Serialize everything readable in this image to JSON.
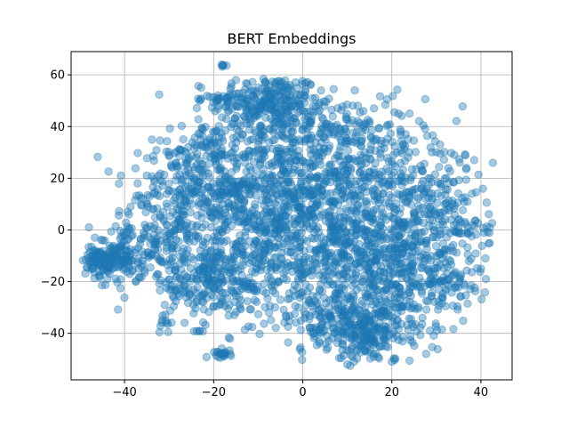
{
  "chart_data": {
    "type": "scatter",
    "title": "BERT Embeddings",
    "xlabel": "",
    "ylabel": "",
    "xlim": [
      -52,
      47
    ],
    "ylim": [
      -58,
      69
    ],
    "xticks": [
      -40,
      -20,
      0,
      20,
      40
    ],
    "yticks": [
      -40,
      -20,
      0,
      20,
      40,
      60
    ],
    "xtick_labels": [
      "−40",
      "−20",
      "0",
      "20",
      "40"
    ],
    "ytick_labels": [
      "−40",
      "−20",
      "0",
      "20",
      "40",
      "60"
    ],
    "grid": true,
    "marker_color": "#1f77b4",
    "marker_alpha": 0.4,
    "clusters": [
      {
        "cx": -8,
        "cy": 50,
        "sx": 6,
        "sy": 5,
        "n": 220
      },
      {
        "cx": -2,
        "cy": 40,
        "sx": 10,
        "sy": 6,
        "n": 180
      },
      {
        "cx": 10,
        "cy": 20,
        "sx": 12,
        "sy": 14,
        "n": 520
      },
      {
        "cx": -10,
        "cy": 15,
        "sx": 10,
        "sy": 12,
        "n": 360
      },
      {
        "cx": 0,
        "cy": -5,
        "sx": 14,
        "sy": 14,
        "n": 620
      },
      {
        "cx": 20,
        "cy": -15,
        "sx": 9,
        "sy": 12,
        "n": 420
      },
      {
        "cx": 15,
        "cy": -40,
        "sx": 5,
        "sy": 6,
        "n": 180
      },
      {
        "cx": 8,
        "cy": -35,
        "sx": 8,
        "sy": 6,
        "n": 150
      },
      {
        "cx": -20,
        "cy": -20,
        "sx": 8,
        "sy": 6,
        "n": 240
      },
      {
        "cx": -25,
        "cy": 15,
        "sx": 7,
        "sy": 8,
        "n": 170
      },
      {
        "cx": -22,
        "cy": 30,
        "sx": 4,
        "sy": 4,
        "n": 50
      },
      {
        "cx": -32,
        "cy": -5,
        "sx": 5,
        "sy": 7,
        "n": 120
      },
      {
        "cx": -44,
        "cy": -12,
        "sx": 3,
        "sy": 3,
        "n": 160
      },
      {
        "cx": -40,
        "cy": -5,
        "sx": 3,
        "sy": 4,
        "n": 40
      },
      {
        "cx": 30,
        "cy": 10,
        "sx": 6,
        "sy": 10,
        "n": 130
      },
      {
        "cx": 32,
        "cy": -20,
        "sx": 4,
        "sy": 6,
        "n": 60
      },
      {
        "cx": 38,
        "cy": 0,
        "sx": 3,
        "sy": 3,
        "n": 30
      },
      {
        "cx": -18,
        "cy": -48,
        "sx": 1,
        "sy": 0.8,
        "n": 22
      },
      {
        "cx": -31,
        "cy": -35,
        "sx": 0.8,
        "sy": 2.5,
        "n": 12
      },
      {
        "cx": -18,
        "cy": 63.5,
        "sx": 0.3,
        "sy": 0.3,
        "n": 6
      },
      {
        "cx": -23,
        "cy": -39,
        "sx": 0.3,
        "sy": 0.3,
        "n": 4
      },
      {
        "cx": -20,
        "cy": 50,
        "sx": 2,
        "sy": 1,
        "n": 14
      }
    ],
    "outliers": [
      [
        42,
        1
      ],
      [
        41,
        -11
      ],
      [
        38,
        14
      ],
      [
        40,
        -15
      ],
      [
        10,
        -52
      ],
      [
        20,
        -51
      ],
      [
        -35,
        21
      ],
      [
        -48,
        1
      ],
      [
        -39,
        6
      ],
      [
        22,
        38
      ],
      [
        29,
        30
      ],
      [
        34,
        29
      ],
      [
        -15,
        58
      ]
    ]
  }
}
